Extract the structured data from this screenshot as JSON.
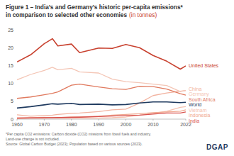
{
  "chart_data": {
    "type": "line",
    "title": "Figure 1 – India’s and Germany’s historic per-capita emissions*",
    "subtitle": "in comparison to selected other economies",
    "y_label": "(in tonnes)",
    "x": [
      1960,
      1965,
      1970,
      1973,
      1975,
      1980,
      1983,
      1990,
      1995,
      2000,
      2005,
      2010,
      2015,
      2020,
      2022
    ],
    "series": [
      {
        "name": "United States",
        "color": "#c8412f",
        "values": [
          16.0,
          18.0,
          21.1,
          22.5,
          20.5,
          21.0,
          18.6,
          19.9,
          19.8,
          20.9,
          20.0,
          17.8,
          16.2,
          14.0,
          14.9
        ]
      },
      {
        "name": "China",
        "color": "#f2b3a0",
        "values": [
          1.2,
          0.8,
          1.0,
          1.1,
          1.3,
          1.6,
          1.7,
          2.1,
          2.6,
          2.8,
          4.5,
          6.6,
          7.3,
          7.8,
          8.0
        ]
      },
      {
        "name": "Germany",
        "color": "#f4c6b6",
        "values": [
          11.0,
          12.5,
          13.6,
          14.5,
          13.8,
          14.2,
          13.2,
          12.9,
          11.2,
          10.5,
          10.2,
          9.8,
          9.4,
          7.7,
          8.0
        ]
      },
      {
        "name": "South Africa",
        "color": "#e07a5f",
        "values": [
          5.8,
          6.2,
          6.8,
          7.2,
          7.6,
          9.5,
          9.8,
          9.0,
          8.5,
          8.3,
          9.2,
          9.1,
          8.4,
          7.1,
          6.7
        ]
      },
      {
        "name": "World",
        "color": "#1f3a5f",
        "values": [
          3.1,
          3.5,
          4.0,
          4.3,
          4.2,
          4.4,
          4.1,
          4.2,
          4.0,
          4.1,
          4.5,
          4.8,
          4.8,
          4.6,
          4.7
        ]
      },
      {
        "name": "Vietnam",
        "color": "#f5c2b0",
        "values": [
          0.3,
          0.4,
          0.5,
          0.4,
          0.3,
          0.3,
          0.3,
          0.3,
          0.4,
          0.6,
          1.1,
          1.6,
          2.2,
          3.3,
          3.5
        ]
      },
      {
        "name": "Indonesia",
        "color": "#f0a890",
        "values": [
          0.2,
          0.3,
          0.3,
          0.4,
          0.4,
          0.6,
          0.6,
          0.8,
          1.1,
          1.3,
          1.5,
          1.8,
          2.0,
          2.2,
          2.6
        ]
      },
      {
        "name": "India",
        "color": "#d9534f",
        "values": [
          0.3,
          0.35,
          0.4,
          0.4,
          0.45,
          0.5,
          0.55,
          0.7,
          0.85,
          1.0,
          1.1,
          1.4,
          1.7,
          1.7,
          2.0
        ]
      }
    ],
    "xlim": [
      1960,
      2022
    ],
    "xticks": [
      1960,
      1970,
      1980,
      1990,
      2000,
      2010,
      2022
    ],
    "ylim": [
      0,
      25
    ],
    "yticks": [
      0,
      5,
      10,
      15,
      20,
      25
    ],
    "grid": false,
    "notes": [
      "*Per capita CO2 emissions: Carbon dioxide (CO2) missions from fossil fuels and industry.",
      "Land-use change is not included.",
      "Source: Global Carbon Budget (2023); Population based on various sources (2023)."
    ],
    "logo": "DGAP"
  }
}
